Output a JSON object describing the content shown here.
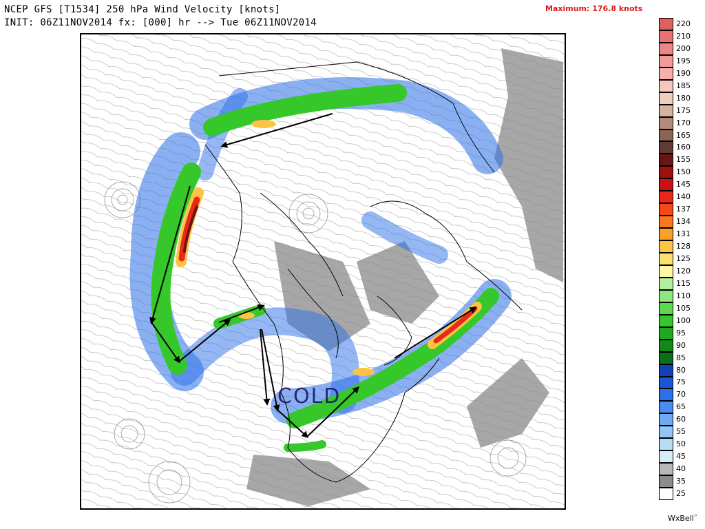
{
  "header": {
    "line1": "NCEP GFS [T1534] 250 hPa Wind Velocity [knots]",
    "line2": "INIT: 06Z11NOV2014 fx: [000] hr --> Tue 06Z11NOV2014",
    "maximum": "Maximum: 176.8 knots"
  },
  "map": {
    "annotation": "COLD"
  },
  "colorbar": {
    "levels": [
      {
        "label": "220",
        "color": "#e0605c"
      },
      {
        "label": "210",
        "color": "#e87272"
      },
      {
        "label": "200",
        "color": "#ee8686"
      },
      {
        "label": "195",
        "color": "#f29a98"
      },
      {
        "label": "190",
        "color": "#f5b0ac"
      },
      {
        "label": "185",
        "color": "#f7c8c0"
      },
      {
        "label": "180",
        "color": "#efd0c0"
      },
      {
        "label": "175",
        "color": "#d7b2a0"
      },
      {
        "label": "170",
        "color": "#b48a78"
      },
      {
        "label": "165",
        "color": "#8a6456"
      },
      {
        "label": "160",
        "color": "#5e3c34"
      },
      {
        "label": "155",
        "color": "#6a1414"
      },
      {
        "label": "150",
        "color": "#9c1010"
      },
      {
        "label": "145",
        "color": "#c81212"
      },
      {
        "label": "140",
        "color": "#e82818"
      },
      {
        "label": "137",
        "color": "#f44818"
      },
      {
        "label": "134",
        "color": "#f8781c"
      },
      {
        "label": "131",
        "color": "#fba02a"
      },
      {
        "label": "128",
        "color": "#fcc442"
      },
      {
        "label": "125",
        "color": "#fde06e"
      },
      {
        "label": "120",
        "color": "#fdf7a6"
      },
      {
        "label": "115",
        "color": "#b4f0a0"
      },
      {
        "label": "110",
        "color": "#8ee67e"
      },
      {
        "label": "105",
        "color": "#5cd84e"
      },
      {
        "label": "100",
        "color": "#36c82a"
      },
      {
        "label": "95",
        "color": "#20a81e"
      },
      {
        "label": "90",
        "color": "#13881a"
      },
      {
        "label": "85",
        "color": "#0c6e1c"
      },
      {
        "label": "80",
        "color": "#1240b8"
      },
      {
        "label": "75",
        "color": "#1858d8"
      },
      {
        "label": "70",
        "color": "#2c70e8"
      },
      {
        "label": "65",
        "color": "#4a8cf0"
      },
      {
        "label": "60",
        "color": "#6eaaf4"
      },
      {
        "label": "55",
        "color": "#92c6f6"
      },
      {
        "label": "50",
        "color": "#b6def8"
      },
      {
        "label": "45",
        "color": "#d6ecf8"
      },
      {
        "label": "40",
        "color": "#b8b8b8"
      },
      {
        "label": "35",
        "color": "#8c8c8c"
      },
      {
        "label": "25",
        "color": "#ffffff"
      }
    ]
  },
  "brand": {
    "name": "WxBell",
    "mark": "°"
  }
}
